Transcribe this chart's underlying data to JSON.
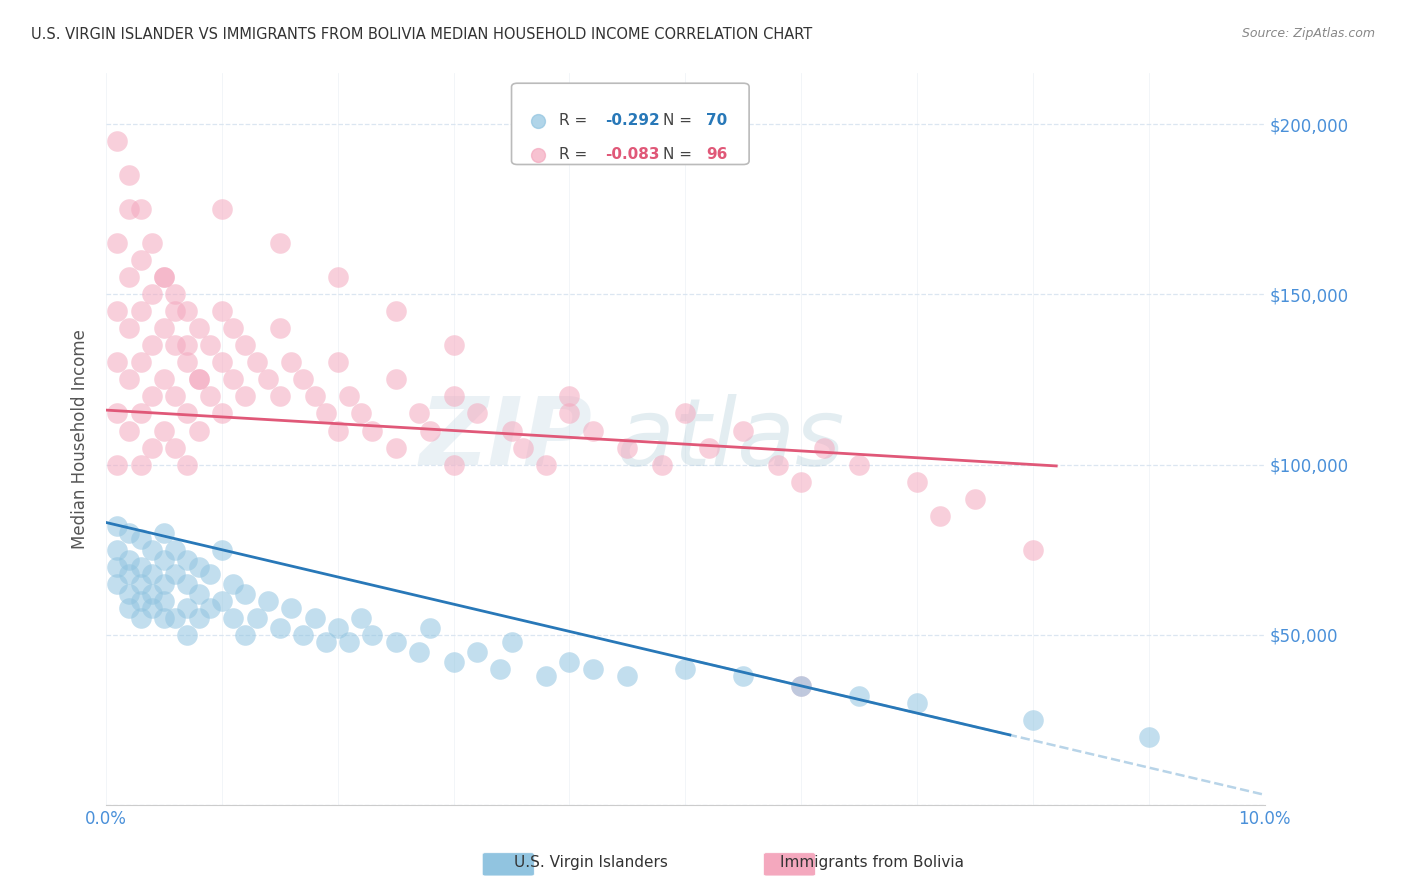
{
  "title": "U.S. VIRGIN ISLANDER VS IMMIGRANTS FROM BOLIVIA MEDIAN HOUSEHOLD INCOME CORRELATION CHART",
  "source": "Source: ZipAtlas.com",
  "ylabel": "Median Household Income",
  "xmin": 0.0,
  "xmax": 0.1,
  "ymin": 0,
  "ymax": 215000,
  "yticks": [
    0,
    50000,
    100000,
    150000,
    200000
  ],
  "ytick_labels": [
    "",
    "$50,000",
    "$100,000",
    "$150,000",
    "$200,000"
  ],
  "label1": "U.S. Virgin Islanders",
  "label2": "Immigrants from Bolivia",
  "color1": "#91c4e0",
  "color2": "#f4a8be",
  "trendline1_color": "#2878b8",
  "trendline2_color": "#e05878",
  "dashed_line_color": "#b8d4e8",
  "blue_r": "-0.292",
  "blue_n": "70",
  "pink_r": "-0.083",
  "pink_n": "96",
  "blue_scatter_x": [
    0.001,
    0.001,
    0.001,
    0.001,
    0.002,
    0.002,
    0.002,
    0.002,
    0.002,
    0.003,
    0.003,
    0.003,
    0.003,
    0.003,
    0.004,
    0.004,
    0.004,
    0.004,
    0.005,
    0.005,
    0.005,
    0.005,
    0.005,
    0.006,
    0.006,
    0.006,
    0.007,
    0.007,
    0.007,
    0.007,
    0.008,
    0.008,
    0.008,
    0.009,
    0.009,
    0.01,
    0.01,
    0.011,
    0.011,
    0.012,
    0.012,
    0.013,
    0.014,
    0.015,
    0.016,
    0.017,
    0.018,
    0.019,
    0.02,
    0.021,
    0.022,
    0.023,
    0.025,
    0.027,
    0.028,
    0.03,
    0.032,
    0.034,
    0.035,
    0.038,
    0.04,
    0.042,
    0.045,
    0.05,
    0.055,
    0.06,
    0.065,
    0.07,
    0.08,
    0.09
  ],
  "blue_scatter_y": [
    82000,
    75000,
    70000,
    65000,
    80000,
    72000,
    68000,
    62000,
    58000,
    78000,
    70000,
    65000,
    60000,
    55000,
    75000,
    68000,
    62000,
    58000,
    80000,
    72000,
    65000,
    60000,
    55000,
    75000,
    68000,
    55000,
    72000,
    65000,
    58000,
    50000,
    70000,
    62000,
    55000,
    68000,
    58000,
    75000,
    60000,
    65000,
    55000,
    62000,
    50000,
    55000,
    60000,
    52000,
    58000,
    50000,
    55000,
    48000,
    52000,
    48000,
    55000,
    50000,
    48000,
    45000,
    52000,
    42000,
    45000,
    40000,
    48000,
    38000,
    42000,
    40000,
    38000,
    40000,
    38000,
    35000,
    32000,
    30000,
    25000,
    20000
  ],
  "pink_scatter_x": [
    0.001,
    0.001,
    0.001,
    0.001,
    0.001,
    0.002,
    0.002,
    0.002,
    0.002,
    0.002,
    0.003,
    0.003,
    0.003,
    0.003,
    0.003,
    0.004,
    0.004,
    0.004,
    0.004,
    0.005,
    0.005,
    0.005,
    0.005,
    0.006,
    0.006,
    0.006,
    0.006,
    0.007,
    0.007,
    0.007,
    0.007,
    0.008,
    0.008,
    0.008,
    0.009,
    0.009,
    0.01,
    0.01,
    0.01,
    0.011,
    0.011,
    0.012,
    0.012,
    0.013,
    0.014,
    0.015,
    0.015,
    0.016,
    0.017,
    0.018,
    0.019,
    0.02,
    0.02,
    0.021,
    0.022,
    0.023,
    0.025,
    0.025,
    0.027,
    0.028,
    0.03,
    0.03,
    0.032,
    0.035,
    0.036,
    0.038,
    0.04,
    0.042,
    0.045,
    0.048,
    0.05,
    0.052,
    0.055,
    0.058,
    0.06,
    0.062,
    0.065,
    0.07,
    0.072,
    0.075,
    0.001,
    0.002,
    0.003,
    0.004,
    0.005,
    0.006,
    0.007,
    0.008,
    0.01,
    0.015,
    0.02,
    0.025,
    0.03,
    0.04,
    0.06,
    0.08
  ],
  "pink_scatter_y": [
    165000,
    145000,
    130000,
    115000,
    100000,
    175000,
    155000,
    140000,
    125000,
    110000,
    160000,
    145000,
    130000,
    115000,
    100000,
    150000,
    135000,
    120000,
    105000,
    155000,
    140000,
    125000,
    110000,
    150000,
    135000,
    120000,
    105000,
    145000,
    130000,
    115000,
    100000,
    140000,
    125000,
    110000,
    135000,
    120000,
    145000,
    130000,
    115000,
    140000,
    125000,
    135000,
    120000,
    130000,
    125000,
    140000,
    120000,
    130000,
    125000,
    120000,
    115000,
    130000,
    110000,
    120000,
    115000,
    110000,
    125000,
    105000,
    115000,
    110000,
    120000,
    100000,
    115000,
    110000,
    105000,
    100000,
    115000,
    110000,
    105000,
    100000,
    115000,
    105000,
    110000,
    100000,
    95000,
    105000,
    100000,
    95000,
    85000,
    90000,
    195000,
    185000,
    175000,
    165000,
    155000,
    145000,
    135000,
    125000,
    175000,
    165000,
    155000,
    145000,
    135000,
    120000,
    35000,
    75000
  ]
}
